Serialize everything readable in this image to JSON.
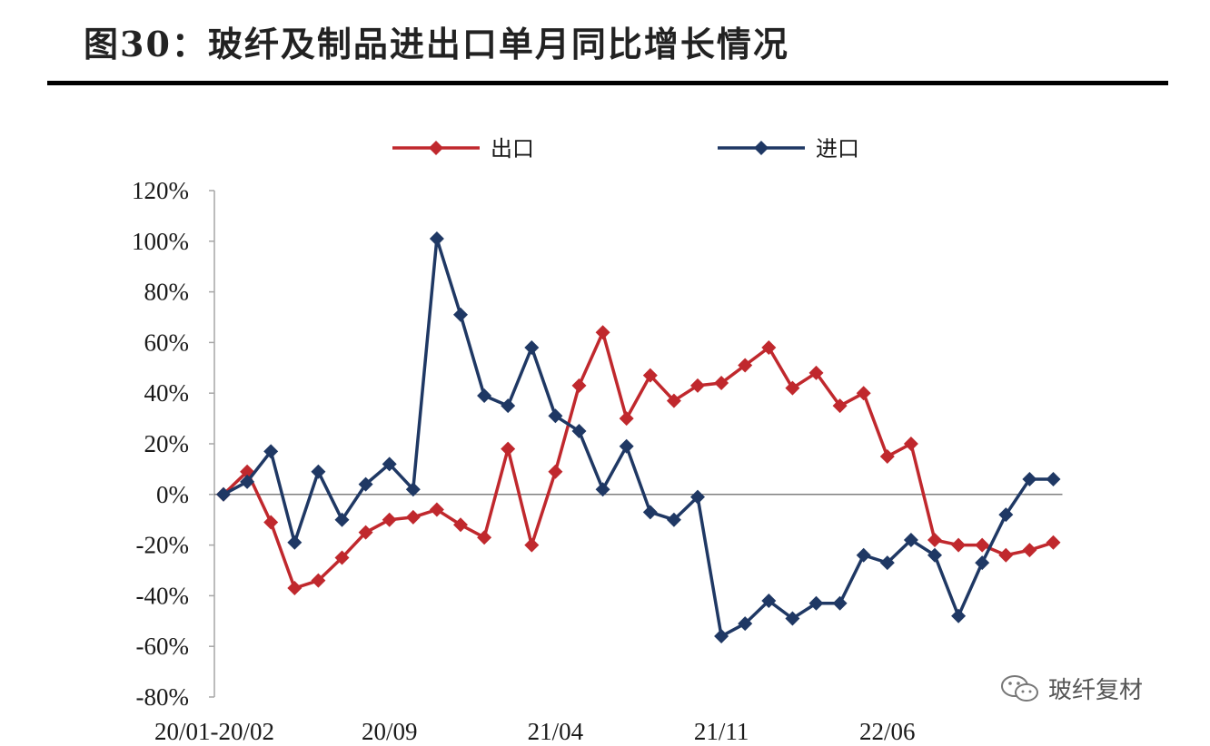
{
  "title": "图30：玻纤及制品进出口单月同比增长情况",
  "watermark": "玻纤复材",
  "colors": {
    "export": "#c0282d",
    "import": "#1f3864",
    "axis": "#a6a6a6",
    "zero_line": "#555555"
  },
  "chart_data": {
    "type": "line",
    "title": "",
    "xlabel": "",
    "ylabel": "",
    "ylim": [
      -0.8,
      1.2
    ],
    "yticks": [
      1.2,
      1.0,
      0.8,
      0.6,
      0.4,
      0.2,
      0.0,
      -0.2,
      -0.4,
      -0.6,
      -0.8
    ],
    "ytick_labels": [
      "120%",
      "100%",
      "80%",
      "60%",
      "40%",
      "20%",
      "0%",
      "-20%",
      "-40%",
      "-60%",
      "-80%"
    ],
    "x": [
      "20/01-20/02",
      "20/03",
      "20/04",
      "20/05",
      "20/06",
      "20/07",
      "20/08",
      "20/09",
      "20/10",
      "20/11",
      "20/12",
      "21/01",
      "21/02",
      "21/03",
      "21/04",
      "21/05",
      "21/06",
      "21/07",
      "21/08",
      "21/09",
      "21/10",
      "21/11",
      "21/12",
      "22/01",
      "22/02",
      "22/03",
      "22/04",
      "22/05",
      "22/06",
      "22/07",
      "22/08",
      "22/09",
      "22/10",
      "22/11",
      "22/12",
      "23/01-23/02"
    ],
    "xtick_labels": [
      {
        "index": 0,
        "label": "20/01-20/02"
      },
      {
        "index": 7,
        "label": "20/09"
      },
      {
        "index": 14,
        "label": "21/04"
      },
      {
        "index": 21,
        "label": "21/11"
      },
      {
        "index": 28,
        "label": "22/06"
      }
    ],
    "legend_position": "top-center",
    "grid": false,
    "series": [
      {
        "name": "出口",
        "key": "export",
        "marker": "diamond",
        "values": [
          0.0,
          0.09,
          -0.11,
          -0.37,
          -0.34,
          -0.25,
          -0.15,
          -0.1,
          -0.09,
          -0.06,
          -0.12,
          -0.17,
          0.18,
          -0.2,
          0.09,
          0.43,
          0.64,
          0.3,
          0.47,
          0.37,
          0.43,
          0.44,
          0.51,
          0.58,
          0.42,
          0.48,
          0.35,
          0.4,
          0.15,
          0.2,
          -0.18,
          -0.2,
          -0.2,
          -0.24,
          -0.22,
          -0.19
        ]
      },
      {
        "name": "进口",
        "key": "import",
        "marker": "diamond",
        "values": [
          0.0,
          0.05,
          0.17,
          -0.19,
          0.09,
          -0.1,
          0.04,
          0.12,
          0.02,
          1.01,
          0.71,
          0.39,
          0.35,
          0.58,
          0.31,
          0.25,
          0.02,
          0.19,
          -0.07,
          -0.1,
          -0.01,
          -0.56,
          -0.51,
          -0.42,
          -0.49,
          -0.43,
          -0.43,
          -0.24,
          -0.27,
          -0.18,
          -0.24,
          -0.48,
          -0.27,
          -0.08,
          0.06,
          0.06
        ]
      }
    ]
  }
}
